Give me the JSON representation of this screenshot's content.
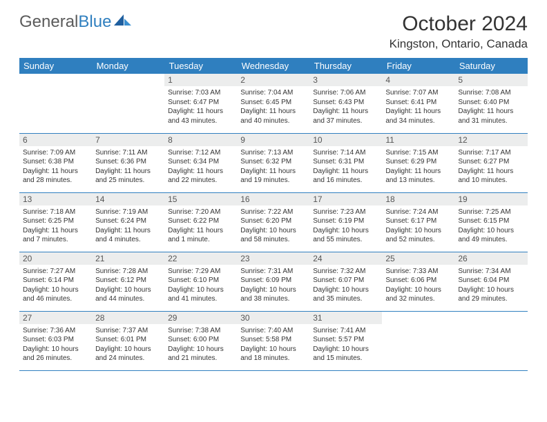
{
  "logo": {
    "part1": "General",
    "part2": "Blue"
  },
  "title": "October 2024",
  "location": "Kingston, Ontario, Canada",
  "colors": {
    "header_bg": "#2f7fbf",
    "header_text": "#ffffff",
    "daynum_bg": "#eceded",
    "daynum_text": "#555555",
    "body_text": "#333333",
    "rule": "#2f7fbf",
    "logo_gray": "#5b5b5b",
    "logo_blue": "#2f7fbf",
    "page_bg": "#ffffff"
  },
  "days": [
    "Sunday",
    "Monday",
    "Tuesday",
    "Wednesday",
    "Thursday",
    "Friday",
    "Saturday"
  ],
  "weeks": [
    [
      null,
      null,
      {
        "n": "1",
        "sr": "Sunrise: 7:03 AM",
        "ss": "Sunset: 6:47 PM",
        "dl": "Daylight: 11 hours and 43 minutes."
      },
      {
        "n": "2",
        "sr": "Sunrise: 7:04 AM",
        "ss": "Sunset: 6:45 PM",
        "dl": "Daylight: 11 hours and 40 minutes."
      },
      {
        "n": "3",
        "sr": "Sunrise: 7:06 AM",
        "ss": "Sunset: 6:43 PM",
        "dl": "Daylight: 11 hours and 37 minutes."
      },
      {
        "n": "4",
        "sr": "Sunrise: 7:07 AM",
        "ss": "Sunset: 6:41 PM",
        "dl": "Daylight: 11 hours and 34 minutes."
      },
      {
        "n": "5",
        "sr": "Sunrise: 7:08 AM",
        "ss": "Sunset: 6:40 PM",
        "dl": "Daylight: 11 hours and 31 minutes."
      }
    ],
    [
      {
        "n": "6",
        "sr": "Sunrise: 7:09 AM",
        "ss": "Sunset: 6:38 PM",
        "dl": "Daylight: 11 hours and 28 minutes."
      },
      {
        "n": "7",
        "sr": "Sunrise: 7:11 AM",
        "ss": "Sunset: 6:36 PM",
        "dl": "Daylight: 11 hours and 25 minutes."
      },
      {
        "n": "8",
        "sr": "Sunrise: 7:12 AM",
        "ss": "Sunset: 6:34 PM",
        "dl": "Daylight: 11 hours and 22 minutes."
      },
      {
        "n": "9",
        "sr": "Sunrise: 7:13 AM",
        "ss": "Sunset: 6:32 PM",
        "dl": "Daylight: 11 hours and 19 minutes."
      },
      {
        "n": "10",
        "sr": "Sunrise: 7:14 AM",
        "ss": "Sunset: 6:31 PM",
        "dl": "Daylight: 11 hours and 16 minutes."
      },
      {
        "n": "11",
        "sr": "Sunrise: 7:15 AM",
        "ss": "Sunset: 6:29 PM",
        "dl": "Daylight: 11 hours and 13 minutes."
      },
      {
        "n": "12",
        "sr": "Sunrise: 7:17 AM",
        "ss": "Sunset: 6:27 PM",
        "dl": "Daylight: 11 hours and 10 minutes."
      }
    ],
    [
      {
        "n": "13",
        "sr": "Sunrise: 7:18 AM",
        "ss": "Sunset: 6:25 PM",
        "dl": "Daylight: 11 hours and 7 minutes."
      },
      {
        "n": "14",
        "sr": "Sunrise: 7:19 AM",
        "ss": "Sunset: 6:24 PM",
        "dl": "Daylight: 11 hours and 4 minutes."
      },
      {
        "n": "15",
        "sr": "Sunrise: 7:20 AM",
        "ss": "Sunset: 6:22 PM",
        "dl": "Daylight: 11 hours and 1 minute."
      },
      {
        "n": "16",
        "sr": "Sunrise: 7:22 AM",
        "ss": "Sunset: 6:20 PM",
        "dl": "Daylight: 10 hours and 58 minutes."
      },
      {
        "n": "17",
        "sr": "Sunrise: 7:23 AM",
        "ss": "Sunset: 6:19 PM",
        "dl": "Daylight: 10 hours and 55 minutes."
      },
      {
        "n": "18",
        "sr": "Sunrise: 7:24 AM",
        "ss": "Sunset: 6:17 PM",
        "dl": "Daylight: 10 hours and 52 minutes."
      },
      {
        "n": "19",
        "sr": "Sunrise: 7:25 AM",
        "ss": "Sunset: 6:15 PM",
        "dl": "Daylight: 10 hours and 49 minutes."
      }
    ],
    [
      {
        "n": "20",
        "sr": "Sunrise: 7:27 AM",
        "ss": "Sunset: 6:14 PM",
        "dl": "Daylight: 10 hours and 46 minutes."
      },
      {
        "n": "21",
        "sr": "Sunrise: 7:28 AM",
        "ss": "Sunset: 6:12 PM",
        "dl": "Daylight: 10 hours and 44 minutes."
      },
      {
        "n": "22",
        "sr": "Sunrise: 7:29 AM",
        "ss": "Sunset: 6:10 PM",
        "dl": "Daylight: 10 hours and 41 minutes."
      },
      {
        "n": "23",
        "sr": "Sunrise: 7:31 AM",
        "ss": "Sunset: 6:09 PM",
        "dl": "Daylight: 10 hours and 38 minutes."
      },
      {
        "n": "24",
        "sr": "Sunrise: 7:32 AM",
        "ss": "Sunset: 6:07 PM",
        "dl": "Daylight: 10 hours and 35 minutes."
      },
      {
        "n": "25",
        "sr": "Sunrise: 7:33 AM",
        "ss": "Sunset: 6:06 PM",
        "dl": "Daylight: 10 hours and 32 minutes."
      },
      {
        "n": "26",
        "sr": "Sunrise: 7:34 AM",
        "ss": "Sunset: 6:04 PM",
        "dl": "Daylight: 10 hours and 29 minutes."
      }
    ],
    [
      {
        "n": "27",
        "sr": "Sunrise: 7:36 AM",
        "ss": "Sunset: 6:03 PM",
        "dl": "Daylight: 10 hours and 26 minutes."
      },
      {
        "n": "28",
        "sr": "Sunrise: 7:37 AM",
        "ss": "Sunset: 6:01 PM",
        "dl": "Daylight: 10 hours and 24 minutes."
      },
      {
        "n": "29",
        "sr": "Sunrise: 7:38 AM",
        "ss": "Sunset: 6:00 PM",
        "dl": "Daylight: 10 hours and 21 minutes."
      },
      {
        "n": "30",
        "sr": "Sunrise: 7:40 AM",
        "ss": "Sunset: 5:58 PM",
        "dl": "Daylight: 10 hours and 18 minutes."
      },
      {
        "n": "31",
        "sr": "Sunrise: 7:41 AM",
        "ss": "Sunset: 5:57 PM",
        "dl": "Daylight: 10 hours and 15 minutes."
      },
      null,
      null
    ]
  ]
}
